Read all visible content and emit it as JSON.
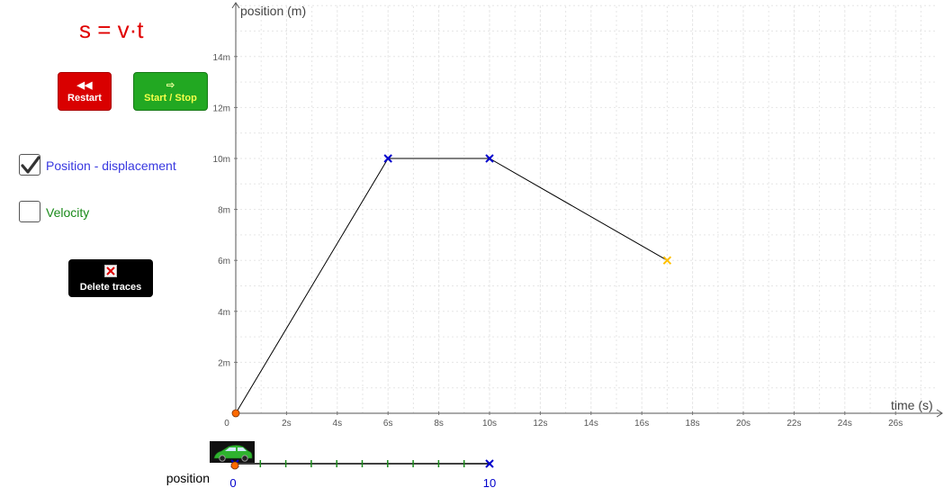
{
  "formula": "s = v·t",
  "buttons": {
    "restart_label": "Restart",
    "start_stop_label": "Start / Stop",
    "delete_traces_label": "Delete traces"
  },
  "checkboxes": [
    {
      "label": "Position - displacement",
      "checked": true,
      "color": "#3838e0"
    },
    {
      "label": "Velocity",
      "checked": false,
      "color": "#1a8a1a"
    }
  ],
  "chart_data": {
    "type": "line",
    "xlabel": "time (s)",
    "ylabel": "position (m)",
    "xlim": [
      0,
      28
    ],
    "ylim": [
      0,
      16
    ],
    "x_ticks": [
      "0",
      "2s",
      "4s",
      "6s",
      "8s",
      "10s",
      "12s",
      "14s",
      "16s",
      "18s",
      "20s",
      "22s",
      "24s",
      "26s"
    ],
    "y_ticks": [
      "2m",
      "4m",
      "6m",
      "8m",
      "10m",
      "12m",
      "14m"
    ],
    "grid": true,
    "series": [
      {
        "points": [
          {
            "x": 0,
            "y": 0,
            "marker": "dot",
            "color": "#ff6a00"
          },
          {
            "x": 6,
            "y": 10,
            "marker": "x",
            "color": "#0000cc"
          },
          {
            "x": 10,
            "y": 10,
            "marker": "x",
            "color": "#0000cc"
          },
          {
            "x": 17,
            "y": 6,
            "marker": "x",
            "color": "#ffc000"
          }
        ],
        "line_color": "#000000"
      }
    ]
  },
  "position_line": {
    "label": "position",
    "start_label": "0",
    "end_label": "10",
    "tick_count": 10,
    "car_position": 0,
    "target_position": 10
  }
}
